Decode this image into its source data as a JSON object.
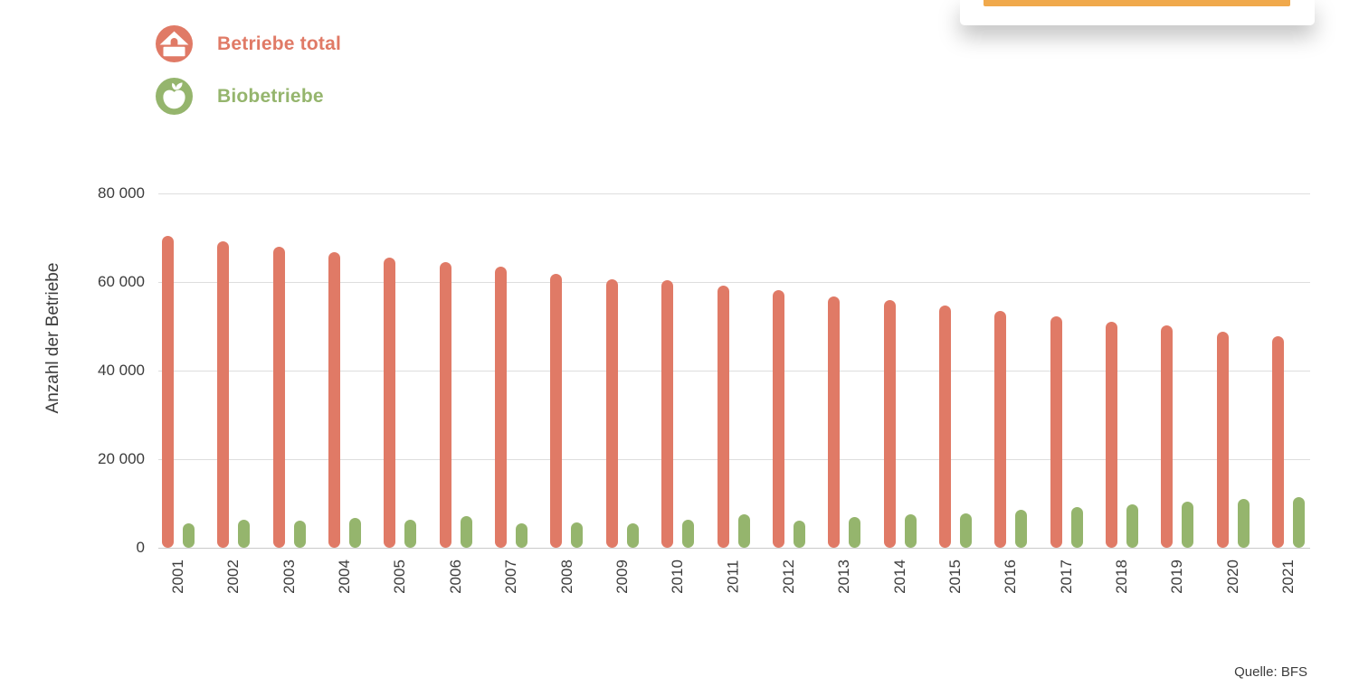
{
  "top_card": {
    "accent_color": "#F0A94C"
  },
  "legend": {
    "items": [
      {
        "label": "Betriebe total",
        "color": "#E07A66",
        "icon": "house-icon"
      },
      {
        "label": "Biobetriebe",
        "color": "#95B56D",
        "icon": "apple-icon"
      }
    ]
  },
  "source": "Quelle: BFS",
  "chart_data": {
    "type": "bar",
    "title": "",
    "xlabel": "",
    "ylabel": "Anzahl der Betriebe",
    "ylim": [
      0,
      80000
    ],
    "ytick_step": 20000,
    "ytick_labels": [
      "0",
      "20 000",
      "40 000",
      "60 000",
      "80 000"
    ],
    "grid": true,
    "legend_position": "top-left",
    "categories": [
      "2001",
      "2002",
      "2003",
      "2004",
      "2005",
      "2006",
      "2007",
      "2008",
      "2009",
      "2010",
      "2011",
      "2012",
      "2013",
      "2014",
      "2015",
      "2016",
      "2017",
      "2018",
      "2019",
      "2020",
      "2021"
    ],
    "series": [
      {
        "name": "Betriebe total",
        "color": "#E07A66",
        "values": [
          69800,
          68500,
          67300,
          66100,
          64900,
          63800,
          62800,
          61200,
          60100,
          59800,
          58500,
          57600,
          56200,
          55400,
          54000,
          52800,
          51700,
          50400,
          49500,
          48200,
          47100
        ]
      },
      {
        "name": "Biobetriebe",
        "color": "#95B56D",
        "values": [
          5000,
          5700,
          5500,
          6100,
          5800,
          6500,
          4800,
          5200,
          5000,
          5700,
          6900,
          5500,
          6400,
          6900,
          7100,
          7900,
          8600,
          9100,
          9700,
          10500,
          10900
        ]
      }
    ]
  }
}
